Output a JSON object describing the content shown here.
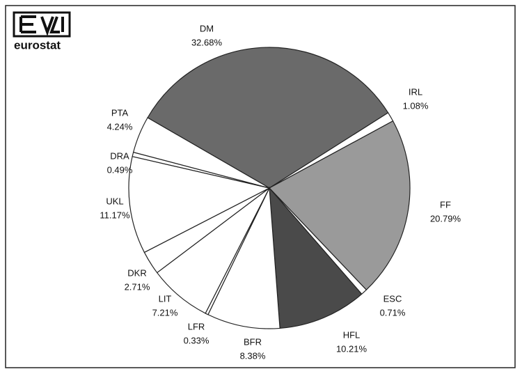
{
  "logo_text": "eurostat",
  "chart_data": {
    "type": "pie",
    "categories": [
      "DM",
      "IRL",
      "FF",
      "ESC",
      "HFL",
      "BFR",
      "LFR",
      "LIT",
      "DKR",
      "UKL",
      "DRA",
      "PTA"
    ],
    "values": [
      32.68,
      1.08,
      20.79,
      0.71,
      10.21,
      8.38,
      0.33,
      7.21,
      2.71,
      11.17,
      0.49,
      4.24
    ],
    "value_labels": [
      "32.68%",
      "1.08%",
      "20.79%",
      "0.71%",
      "10.21%",
      "8.38%",
      "0.33%",
      "7.21%",
      "2.71%",
      "11.17%",
      "0.49%",
      "4.24%"
    ],
    "colors": [
      "#6a6a6a",
      "#ffffff",
      "#9a9a9a",
      "#ffffff",
      "#4a4a4a",
      "#ffffff",
      "#ffffff",
      "#ffffff",
      "#ffffff",
      "#ffffff",
      "#ffffff",
      "#ffffff"
    ]
  }
}
